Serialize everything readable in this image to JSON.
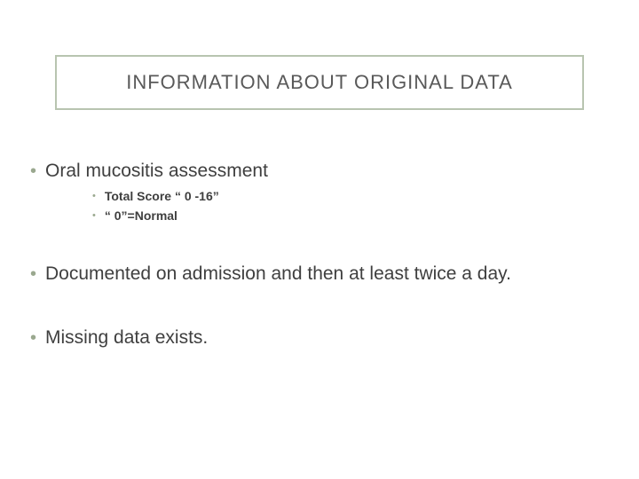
{
  "title": "INFORMATION ABOUT ORIGINAL DATA",
  "colors": {
    "border": "#b8c4b0",
    "bullet": "#9aa88f",
    "text": "#3f3f3f",
    "title": "#595959",
    "background": "#ffffff"
  },
  "typography": {
    "title_fontsize": 22,
    "bullet1_fontsize": 21,
    "bullet2_fontsize": 14,
    "bullet2_weight": "bold"
  },
  "bullets": [
    {
      "text": "Oral mucositis assessment",
      "sub": [
        "Total Score “ 0 -16”",
        "“ 0”=Normal"
      ]
    },
    {
      "text": "Documented on admission and then at least twice a day.",
      "sub": []
    },
    {
      "text": "Missing data exists.",
      "sub": []
    }
  ]
}
